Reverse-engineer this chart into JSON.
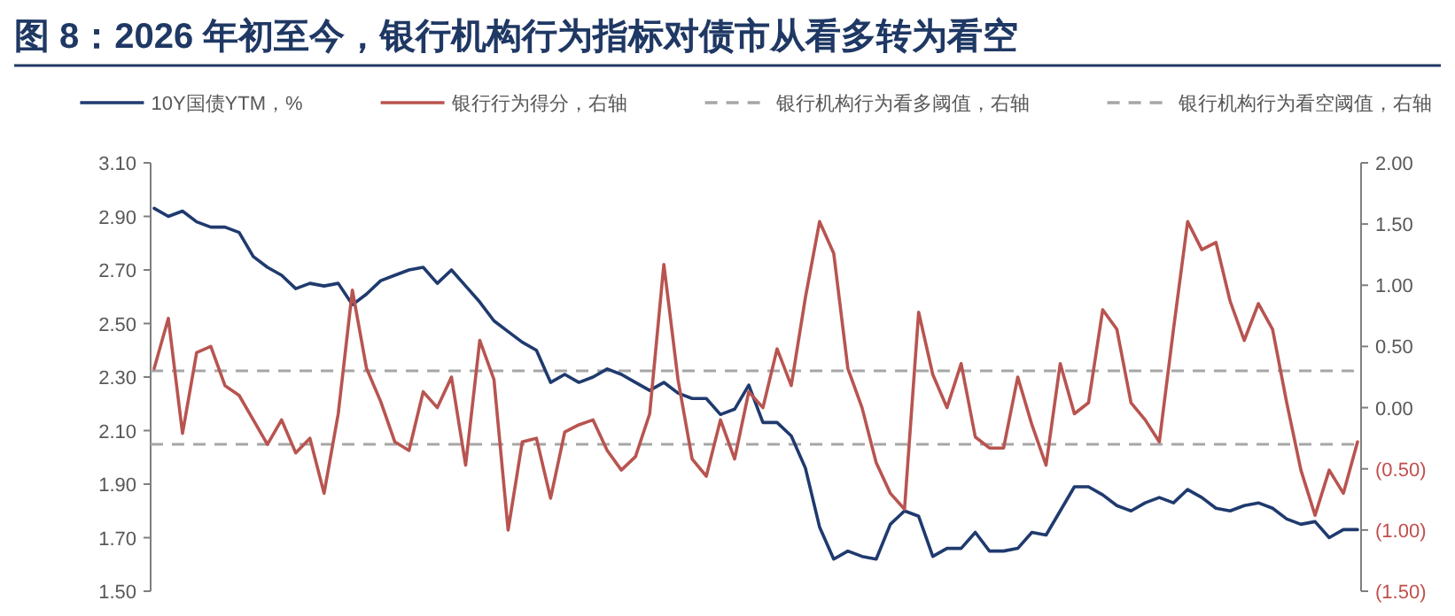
{
  "chart_data": {
    "type": "line",
    "title": "图 8：2026 年初至今，银行机构行为指标对债市从看多转为看空",
    "legend": "top",
    "categories": [
      null,
      null,
      null,
      null,
      null,
      null,
      null,
      null,
      null,
      null,
      null,
      null,
      null,
      null,
      null,
      null,
      null,
      null,
      null,
      null,
      null,
      null,
      null,
      null,
      null,
      null,
      null,
      null,
      null,
      null,
      null,
      null,
      null,
      null,
      null,
      null,
      null,
      null,
      null,
      null,
      null,
      null,
      null,
      null,
      null,
      null,
      null,
      null,
      null,
      null,
      null,
      null,
      null,
      null,
      null,
      null,
      null,
      null,
      null,
      null,
      null,
      null,
      null,
      null,
      null,
      null,
      null,
      null,
      null,
      null,
      null,
      null,
      null,
      null,
      null,
      null,
      null,
      null,
      null,
      null,
      null,
      null,
      null,
      null,
      null,
      null
    ],
    "ylim": [
      1.5,
      3.1
    ],
    "yticks": [
      {
        "value": 1.5,
        "label": "1.50"
      },
      {
        "value": 1.7,
        "label": "1.70"
      },
      {
        "value": 1.9,
        "label": "1.90"
      },
      {
        "value": 2.1,
        "label": "2.10"
      },
      {
        "value": 2.3,
        "label": "2.30"
      },
      {
        "value": 2.5,
        "label": "2.50"
      },
      {
        "value": 2.7,
        "label": "2.70"
      },
      {
        "value": 2.9,
        "label": "2.90"
      },
      {
        "value": 3.1,
        "label": "3.10"
      }
    ],
    "y2lim": [
      -1.5,
      2.0
    ],
    "y2ticks": [
      {
        "value": -1.5,
        "label": "(1.50)"
      },
      {
        "value": -1.0,
        "label": "(1.00)"
      },
      {
        "value": -0.5,
        "label": "(0.50)"
      },
      {
        "value": 0,
        "label": "0.00"
      },
      {
        "value": 0.5,
        "label": "0.50"
      },
      {
        "value": 1.0,
        "label": "1.00"
      },
      {
        "value": 1.5,
        "label": "1.50"
      },
      {
        "value": 2.0,
        "label": "2.00"
      }
    ],
    "ref_lines": [
      {
        "axis": "y2",
        "value": 0.3,
        "label": "银行机构行为看多阈值，右轴",
        "color": "#a6a6a6",
        "line_style": "dashed"
      },
      {
        "axis": "y2",
        "value": -0.3,
        "label": "银行机构行为看空阈值，右轴",
        "color": "#a6a6a6",
        "line_style": "dashed"
      }
    ],
    "series": [
      {
        "name": "10Y国债YTM，%",
        "color": "#1f3a6e",
        "values": [
          2.93,
          2.9,
          2.92,
          2.88,
          2.86,
          2.86,
          2.84,
          2.75,
          2.71,
          2.68,
          2.63,
          2.65,
          2.64,
          2.65,
          2.57,
          2.61,
          2.66,
          2.68,
          2.7,
          2.71,
          2.65,
          2.7,
          2.64,
          2.58,
          2.51,
          2.47,
          2.43,
          2.4,
          2.28,
          2.31,
          2.28,
          2.3,
          2.33,
          2.31,
          2.28,
          2.25,
          2.28,
          2.24,
          2.22,
          2.22,
          2.16,
          2.18,
          2.27,
          2.13,
          2.13,
          2.08,
          1.96,
          1.74,
          1.62,
          1.65,
          1.63,
          1.62,
          1.75,
          1.8,
          1.78,
          1.63,
          1.66,
          1.66,
          1.72,
          1.65,
          1.65,
          1.66,
          1.72,
          1.71,
          1.8,
          1.89,
          1.89,
          1.86,
          1.82,
          1.8,
          1.83,
          1.85,
          1.83,
          1.88,
          1.85,
          1.81,
          1.8,
          1.82,
          1.83,
          1.81,
          1.77,
          1.75,
          1.76,
          1.7,
          1.73,
          1.73
        ]
      },
      {
        "name": "银行行为得分，右轴",
        "color": "#b85450",
        "axis": "y2",
        "values": [
          0.32,
          0.73,
          -0.21,
          0.45,
          0.5,
          0.18,
          0.1,
          -0.1,
          -0.3,
          -0.1,
          -0.37,
          -0.25,
          -0.7,
          -0.05,
          0.96,
          0.32,
          0.05,
          -0.28,
          -0.35,
          0.13,
          0,
          0.25,
          -0.47,
          0.55,
          0.23,
          -1.0,
          -0.28,
          -0.25,
          -0.74,
          -0.2,
          -0.14,
          -0.1,
          -0.35,
          -0.51,
          -0.4,
          -0.05,
          1.17,
          0.23,
          -0.42,
          -0.56,
          -0.1,
          -0.42,
          0.13,
          0,
          0.48,
          0.18,
          0.9,
          1.52,
          1.26,
          0.32,
          0,
          -0.45,
          -0.7,
          -0.83,
          0.78,
          0.27,
          0,
          0.36,
          -0.24,
          -0.33,
          -0.33,
          0.25,
          -0.14,
          -0.47,
          0.36,
          -0.05,
          0.04,
          0.8,
          0.64,
          0.04,
          -0.1,
          -0.28,
          0.64,
          1.52,
          1.29,
          1.35,
          0.87,
          0.55,
          0.85,
          0.64,
          0.04,
          -0.51,
          -0.88,
          -0.51,
          -0.7,
          -0.28
        ]
      }
    ]
  }
}
